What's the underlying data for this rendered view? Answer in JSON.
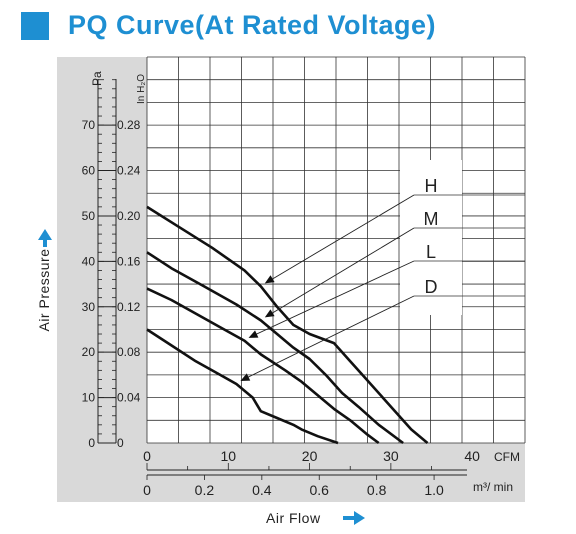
{
  "title": "PQ Curve(At Rated Voltage)",
  "colors": {
    "accent": "#1e8fd2",
    "panel": "#d9d9d9",
    "curve": "#111111",
    "grid": "#333333"
  },
  "chart_data": {
    "type": "line",
    "title": "PQ Curve(At Rated Voltage)",
    "xlabel": "Air Flow",
    "ylabel": "Air Pressure",
    "x_unit_primary": "CFM",
    "x_unit_secondary": "m³/ min",
    "y_unit_primary": "Pa",
    "y_unit_secondary": "In H₂O",
    "xlim": [
      0,
      46.5
    ],
    "ylim": [
      0,
      85
    ],
    "x_ticks": [
      "0",
      "10",
      "20",
      "30",
      "40"
    ],
    "x2_ticks": [
      "0",
      "0.2",
      "0.4",
      "0.6",
      "0.8",
      "1.0"
    ],
    "y_ticks": [
      "0",
      "10",
      "20",
      "30",
      "40",
      "50",
      "60",
      "70"
    ],
    "y2_ticks": [
      "0",
      "0.04",
      "0.08",
      "0.12",
      "0.16",
      "0.20",
      "0.24",
      "0.28"
    ],
    "grid": true,
    "series": [
      {
        "name": "H",
        "x": [
          0,
          4,
          8,
          12,
          14,
          16,
          18,
          20,
          23,
          25,
          27,
          29.5,
          32.5,
          34.5
        ],
        "y": [
          52,
          47.5,
          43,
          38,
          34.5,
          30,
          26,
          24,
          22,
          18,
          14,
          9,
          3,
          0
        ]
      },
      {
        "name": "M",
        "x": [
          0,
          3,
          7,
          11,
          14,
          16,
          18,
          20,
          22,
          24,
          26,
          28.5,
          31.5
        ],
        "y": [
          42,
          38.5,
          34.5,
          30.5,
          27,
          24,
          21,
          18.5,
          15,
          11,
          8,
          4,
          0
        ]
      },
      {
        "name": "L",
        "x": [
          0,
          3,
          6,
          9,
          12,
          14,
          17,
          19,
          21,
          23,
          25,
          27,
          28.5
        ],
        "y": [
          34,
          31.5,
          28.5,
          25.5,
          22.5,
          19.5,
          16,
          13.5,
          10.5,
          7.5,
          5,
          2,
          0
        ]
      },
      {
        "name": "D",
        "x": [
          0,
          3,
          6,
          9,
          11,
          13,
          14,
          16,
          18,
          19,
          21,
          23.5
        ],
        "y": [
          25,
          21.5,
          18,
          15,
          13,
          10,
          7,
          5.5,
          4,
          3,
          1.5,
          0
        ]
      }
    ]
  }
}
